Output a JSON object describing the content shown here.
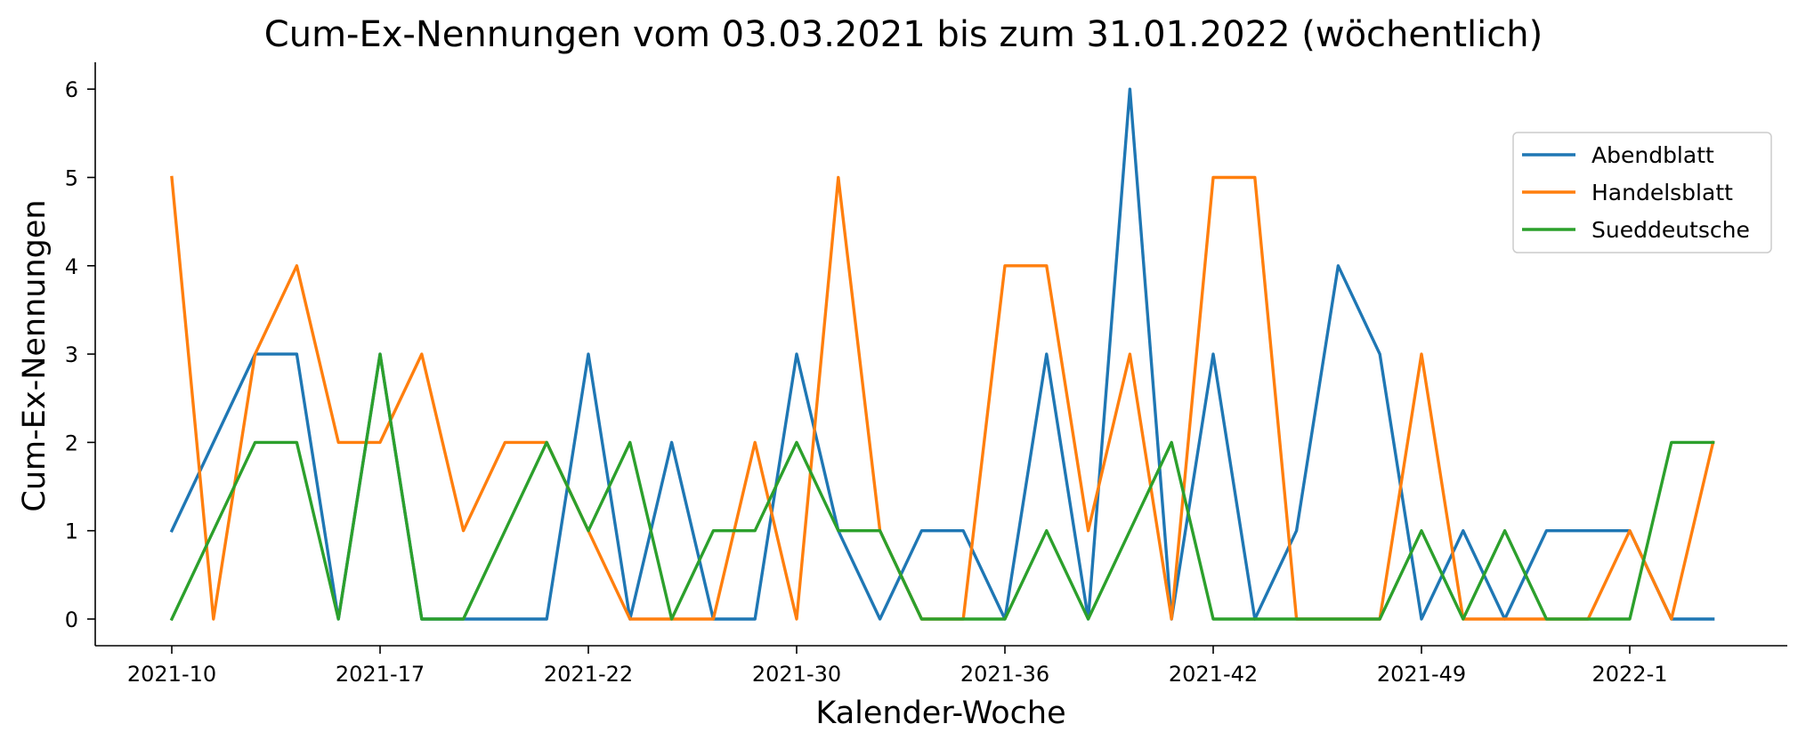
{
  "chart_data": {
    "type": "line",
    "title": "Cum-Ex-Nennungen vom 03.03.2021 bis zum 31.01.2022 (wöchentlich)",
    "xlabel": "Kalender-Woche",
    "ylabel": "Cum-Ex-Nennungen",
    "ylim": [
      -0.3,
      6.3
    ],
    "yticks": [
      0,
      1,
      2,
      3,
      4,
      5,
      6
    ],
    "xtick_labels": [
      {
        "index": 0,
        "label": "2021-10"
      },
      {
        "index": 5,
        "label": "2021-17"
      },
      {
        "index": 10,
        "label": "2021-22"
      },
      {
        "index": 15,
        "label": "2021-30"
      },
      {
        "index": 20,
        "label": "2021-36"
      },
      {
        "index": 25,
        "label": "2021-42"
      },
      {
        "index": 30,
        "label": "2021-49"
      },
      {
        "index": 35,
        "label": "2022-1"
      }
    ],
    "legend_position": "upper right",
    "grid": false,
    "series": [
      {
        "name": "Abendblatt",
        "color": "#1f77b4",
        "values": [
          1,
          2,
          3,
          3,
          0,
          3,
          0,
          0,
          0,
          0,
          3,
          0,
          2,
          0,
          0,
          3,
          1,
          0,
          1,
          1,
          0,
          3,
          0,
          6,
          0,
          3,
          0,
          1,
          4,
          3,
          0,
          1,
          0,
          1,
          1,
          1,
          0,
          0
        ]
      },
      {
        "name": "Handelsblatt",
        "color": "#ff7f0e",
        "values": [
          5,
          0,
          3,
          4,
          2,
          2,
          3,
          1,
          2,
          2,
          1,
          0,
          0,
          0,
          2,
          0,
          5,
          1,
          0,
          0,
          4,
          4,
          1,
          3,
          0,
          5,
          5,
          0,
          0,
          0,
          3,
          0,
          0,
          0,
          0,
          1,
          0,
          2
        ]
      },
      {
        "name": "Sueddeutsche",
        "color": "#2ca02c",
        "values": [
          0,
          1,
          2,
          2,
          0,
          3,
          0,
          0,
          1,
          2,
          1,
          2,
          0,
          1,
          1,
          2,
          1,
          1,
          0,
          0,
          0,
          1,
          0,
          1,
          2,
          0,
          0,
          0,
          0,
          0,
          1,
          0,
          1,
          0,
          0,
          0,
          2,
          2
        ]
      }
    ]
  }
}
